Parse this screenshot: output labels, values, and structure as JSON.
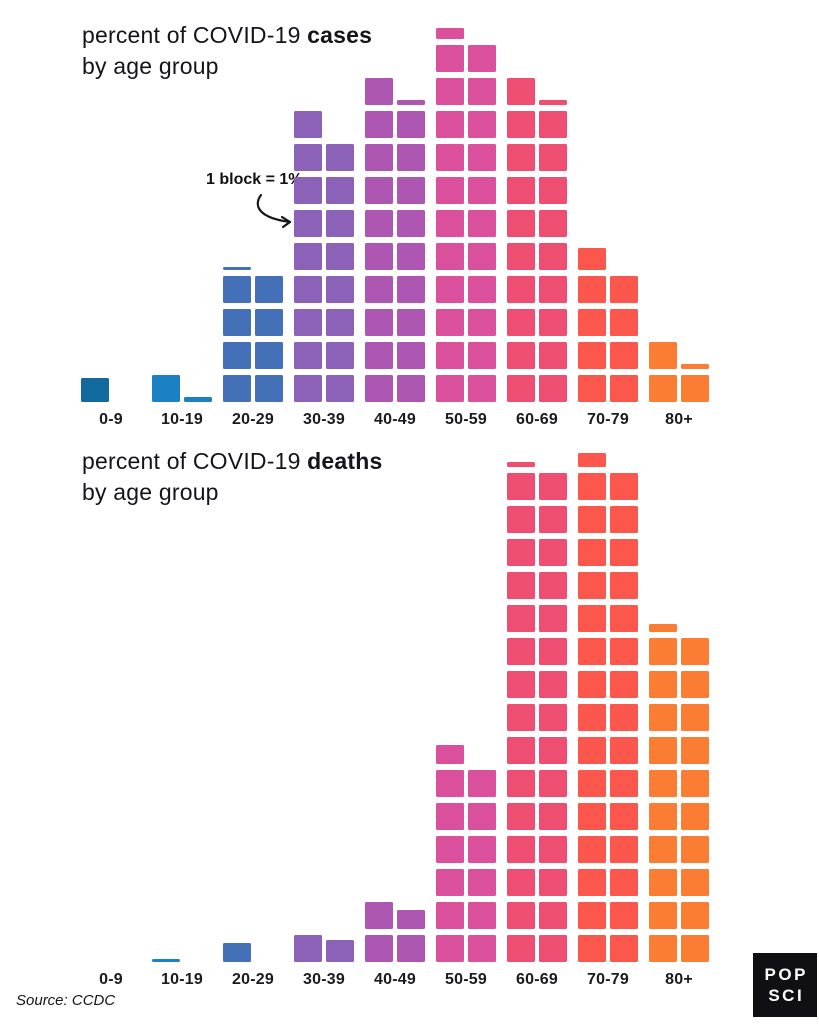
{
  "chart_data": [
    {
      "id": "cases",
      "type": "bar",
      "style": "waffle blocks, two stacks per category, 1 block = 1%",
      "title": "percent of COVID-19 cases by age group",
      "title_prefix": "percent of COVID-19 ",
      "title_bold": "cases",
      "title_line2": "by age group",
      "xlabel": "age group",
      "ylabel": "percent of cases",
      "unit": "percent (1 block = 1%)",
      "categories": [
        "0-9",
        "10-19",
        "20-29",
        "30-39",
        "40-49",
        "50-59",
        "60-69",
        "70-79",
        "80+"
      ],
      "values": [
        0.9,
        1.2,
        8.1,
        17,
        19.2,
        22.4,
        19.2,
        8.8,
        3.2
      ]
    },
    {
      "id": "deaths",
      "type": "bar",
      "style": "waffle blocks, two stacks per category, 1 block = 1%",
      "title": "percent of COVID-19 deaths by age group",
      "title_prefix": "percent of COVID-19 ",
      "title_bold": "deaths",
      "title_line2": "by age group",
      "xlabel": "age group",
      "ylabel": "percent of deaths",
      "unit": "percent (1 block = 1%)",
      "categories": [
        "0-9",
        "10-19",
        "20-29",
        "30-39",
        "40-49",
        "50-59",
        "60-69",
        "70-79",
        "80+"
      ],
      "values": [
        0,
        0.1,
        0.7,
        1.8,
        3.7,
        12.7,
        30.2,
        30.5,
        20.3
      ]
    }
  ],
  "colors": [
    "#11699e",
    "#1b80c4",
    "#4470b8",
    "#8c61b8",
    "#ae57b2",
    "#db509c",
    "#ee4e72",
    "#fb574d",
    "#fa7d33"
  ],
  "annotation": {
    "label": "1 block = 1%"
  },
  "source": "Source: CCDC",
  "logo": {
    "line1": "POP",
    "line2": "SCI"
  }
}
